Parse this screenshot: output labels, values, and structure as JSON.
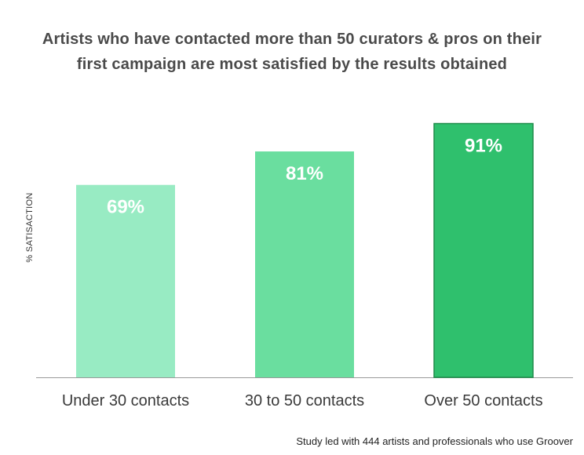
{
  "chart_data": {
    "type": "bar",
    "title": "Artists who have contacted more than 50 curators & pros on their first campaign are most satisfied by the results obtained",
    "ylabel": "% SATISACTION",
    "xlabel": "",
    "categories": [
      "Under 30 contacts",
      "30 to 50 contacts",
      "Over 50 contacts"
    ],
    "values": [
      69,
      81,
      91
    ],
    "data_labels": [
      "69%",
      "81%",
      "91%"
    ],
    "ylim": [
      0,
      100
    ],
    "grid": false,
    "colors": [
      "#98ebc3",
      "#6ade9f",
      "#2fc06d"
    ],
    "highlight_border": "#1e8c4a",
    "footnote": "Study led with 444 artists and professionals who use Groover"
  }
}
